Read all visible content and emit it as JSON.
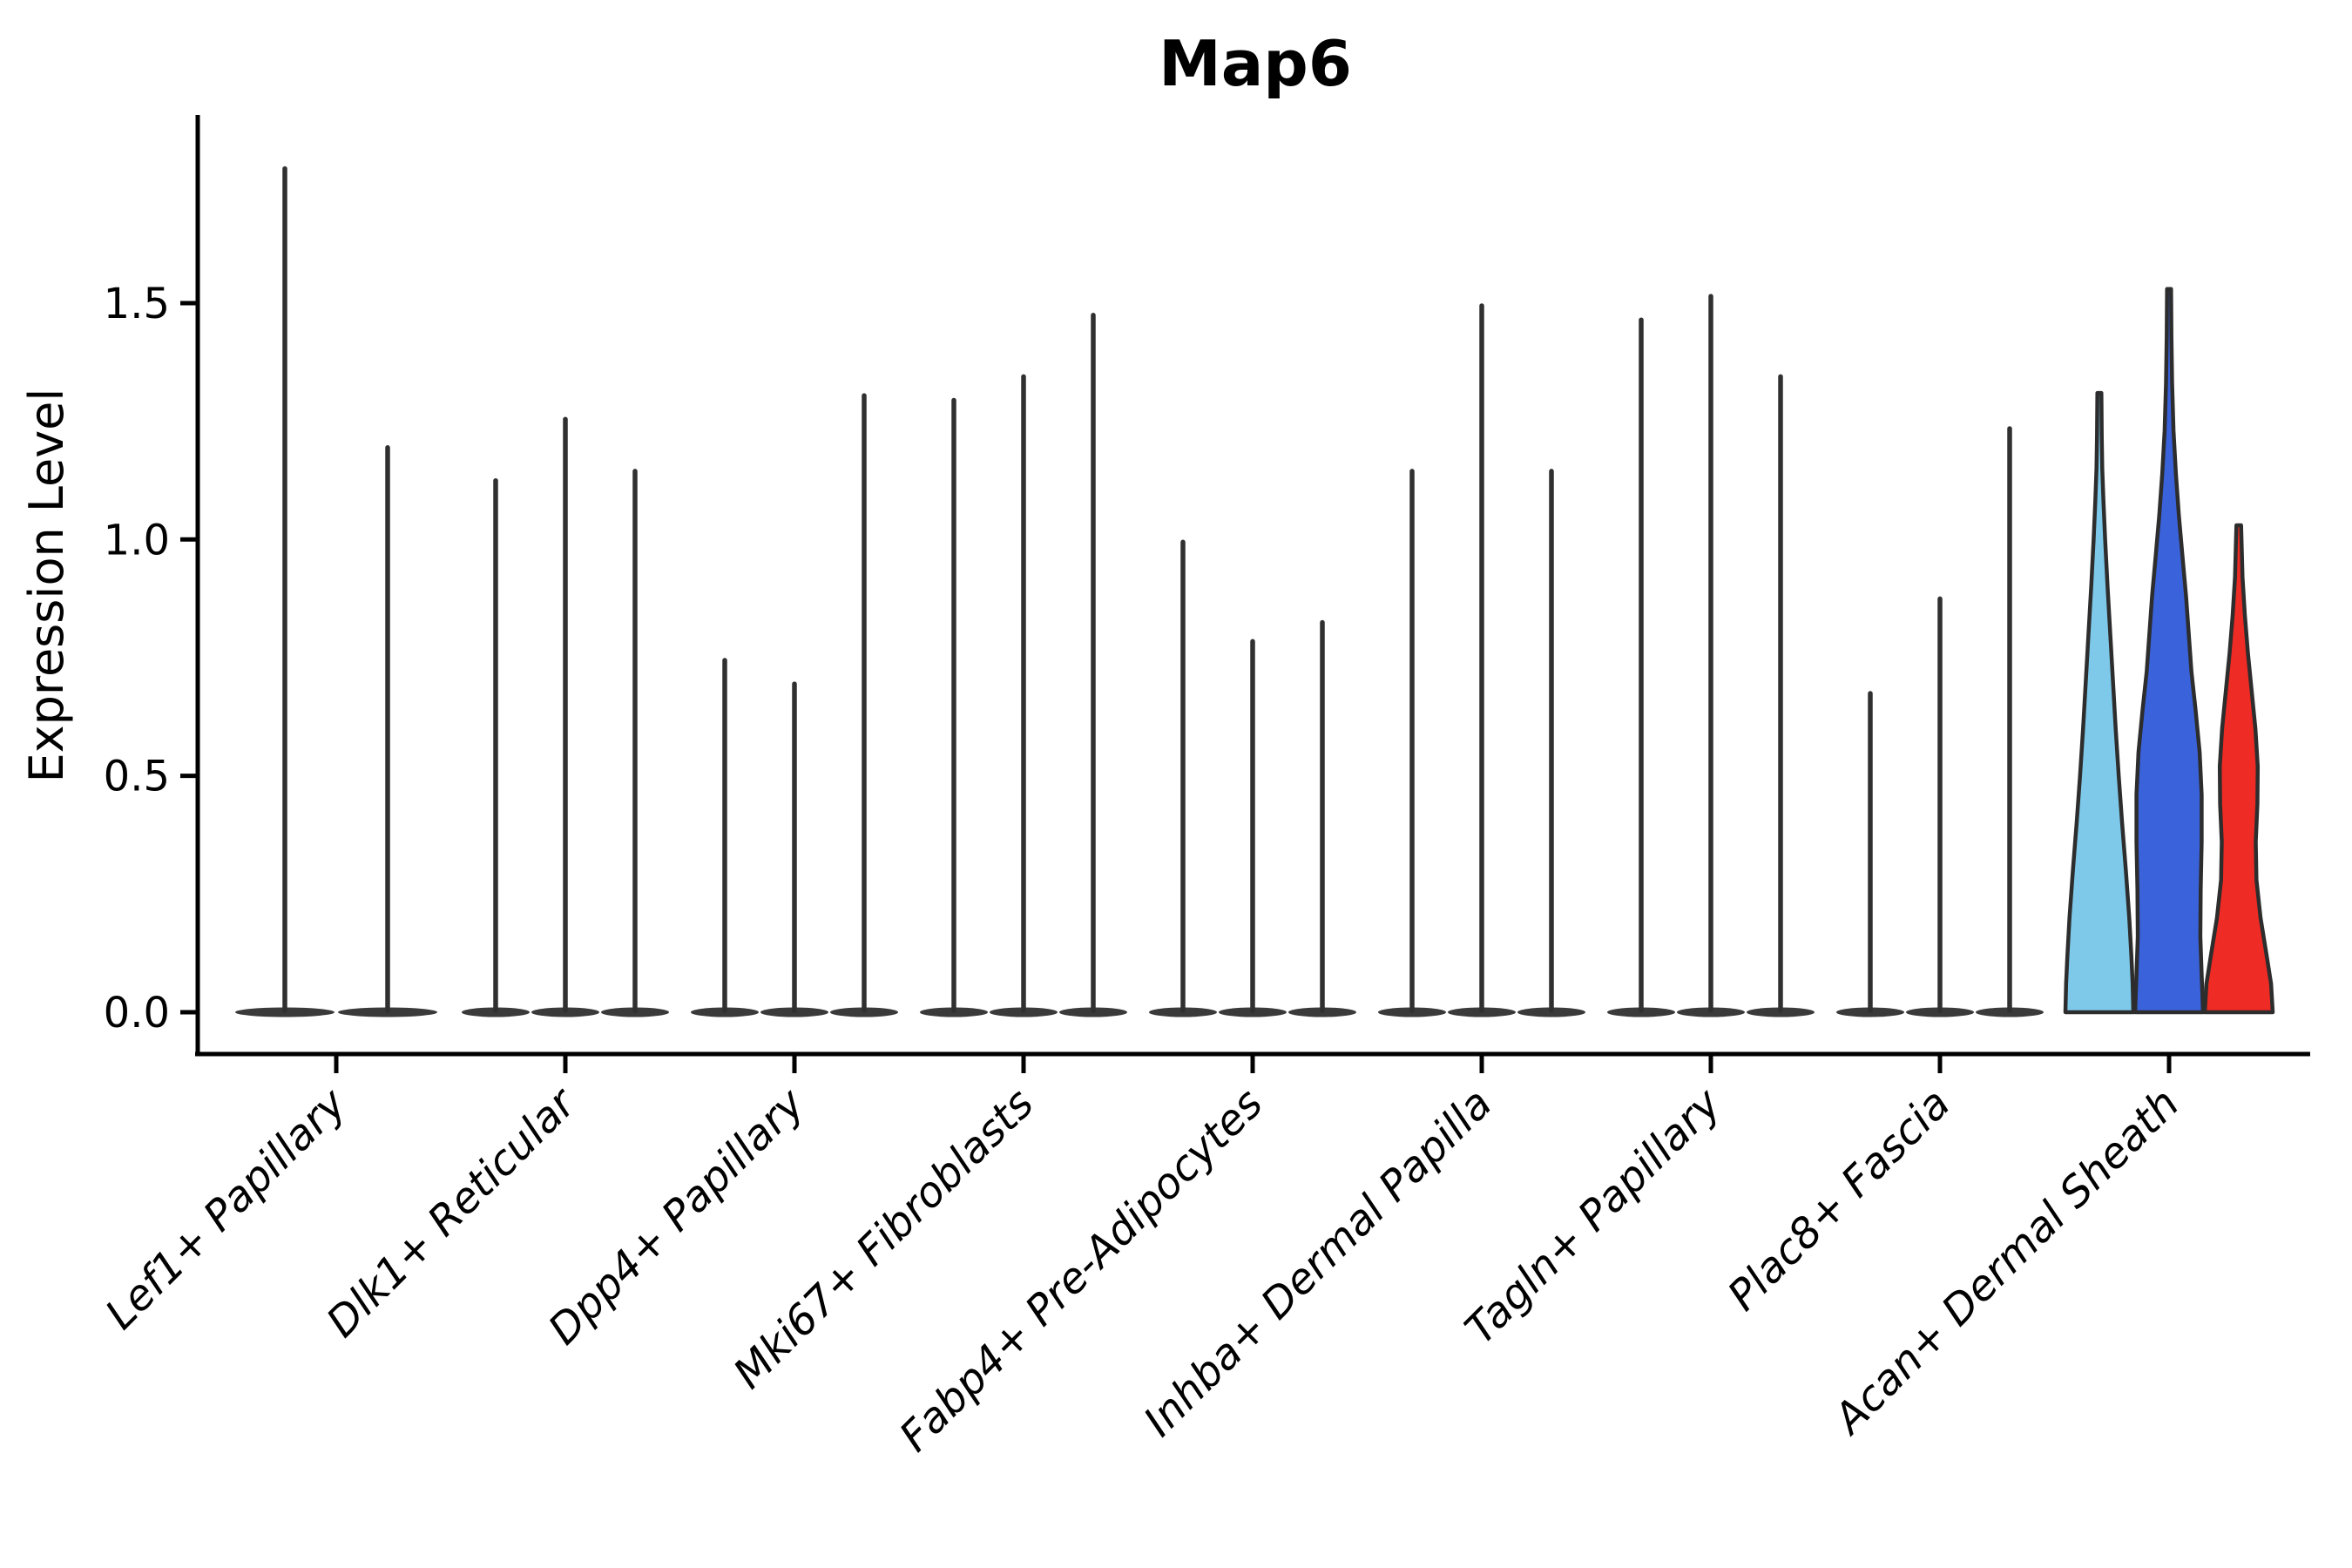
{
  "title": "Map6",
  "axes": {
    "ylabel": "Expression Level",
    "ytick_labels": [
      "0.0",
      "0.5",
      "1.0",
      "1.5"
    ]
  },
  "chart_data": {
    "type": "violin",
    "title": "Map6",
    "xlabel": "",
    "ylabel": "Expression Level",
    "ylim": [
      0,
      1.89
    ],
    "yticks": [
      0.0,
      0.5,
      1.0,
      1.5
    ],
    "grid": false,
    "legend_position": "none",
    "categories": [
      "Lef1+ Papillary",
      "Dlk1+ Reticular",
      "Dpp4+ Papillary",
      "Mki67+ Fibroblasts",
      "Fabp4+ Pre-Adipocytes",
      "Inhba+ Dermal Papilla",
      "Tagln+ Papillary",
      "Plac8+ Fascia",
      "Acan+ Dermal Sheath"
    ],
    "groups": [
      {
        "category": "Lef1+ Papillary",
        "violins": [
          {
            "max": 1.79,
            "color": "#3a3a3a"
          },
          {
            "max": 1.2,
            "color": "#3a3a3a"
          }
        ]
      },
      {
        "category": "Dlk1+ Reticular",
        "violins": [
          {
            "max": 1.13,
            "color": "#3a3a3a"
          },
          {
            "max": 1.26,
            "color": "#3a3a3a"
          },
          {
            "max": 1.15,
            "color": "#3a3a3a"
          }
        ]
      },
      {
        "category": "Dpp4+ Papillary",
        "violins": [
          {
            "max": 0.75,
            "color": "#3a3a3a"
          },
          {
            "max": 0.7,
            "color": "#3a3a3a"
          },
          {
            "max": 1.31,
            "color": "#3a3a3a"
          }
        ]
      },
      {
        "category": "Mki67+ Fibroblasts",
        "violins": [
          {
            "max": 1.3,
            "color": "#3a3a3a"
          },
          {
            "max": 1.35,
            "color": "#3a3a3a"
          },
          {
            "max": 1.48,
            "color": "#3a3a3a"
          }
        ]
      },
      {
        "category": "Fabp4+ Pre-Adipocytes",
        "violins": [
          {
            "max": 1.0,
            "color": "#3a3a3a"
          },
          {
            "max": 0.79,
            "color": "#3a3a3a"
          },
          {
            "max": 0.83,
            "color": "#3a3a3a"
          }
        ]
      },
      {
        "category": "Inhba+ Dermal Papilla",
        "violins": [
          {
            "max": 1.15,
            "color": "#3a3a3a"
          },
          {
            "max": 1.5,
            "color": "#3a3a3a"
          },
          {
            "max": 1.15,
            "color": "#3a3a3a"
          }
        ]
      },
      {
        "category": "Tagln+ Papillary",
        "violins": [
          {
            "max": 1.47,
            "color": "#3a3a3a"
          },
          {
            "max": 1.52,
            "color": "#3a3a3a"
          },
          {
            "max": 1.35,
            "color": "#3a3a3a"
          }
        ]
      },
      {
        "category": "Plac8+ Fascia",
        "violins": [
          {
            "max": 0.68,
            "color": "#3a3a3a"
          },
          {
            "max": 0.88,
            "color": "#3a3a3a"
          },
          {
            "max": 1.24,
            "color": "#3a3a3a"
          }
        ]
      },
      {
        "category": "Acan+ Dermal Sheath",
        "violins": [
          {
            "max": 1.31,
            "color": "#7EC9E9",
            "profile": [
              [
                0.0,
                1.0
              ],
              [
                0.06,
                0.98
              ],
              [
                0.12,
                0.94
              ],
              [
                0.2,
                0.88
              ],
              [
                0.3,
                0.78
              ],
              [
                0.4,
                0.67
              ],
              [
                0.5,
                0.57
              ],
              [
                0.6,
                0.48
              ],
              [
                0.7,
                0.4
              ],
              [
                0.8,
                0.32
              ],
              [
                0.9,
                0.24
              ],
              [
                1.0,
                0.17
              ],
              [
                1.08,
                0.12
              ],
              [
                1.15,
                0.085
              ],
              [
                1.22,
                0.068
              ],
              [
                1.31,
                0.06
              ]
            ]
          },
          {
            "max": 1.53,
            "color": "#3A62DB",
            "profile": [
              [
                0.0,
                1.0
              ],
              [
                0.08,
                0.96
              ],
              [
                0.16,
                0.92
              ],
              [
                0.26,
                0.93
              ],
              [
                0.36,
                0.96
              ],
              [
                0.46,
                0.96
              ],
              [
                0.55,
                0.9
              ],
              [
                0.64,
                0.78
              ],
              [
                0.72,
                0.66
              ],
              [
                0.8,
                0.58
              ],
              [
                0.88,
                0.5
              ],
              [
                0.96,
                0.4
              ],
              [
                1.05,
                0.29
              ],
              [
                1.14,
                0.2
              ],
              [
                1.23,
                0.13
              ],
              [
                1.33,
                0.09
              ],
              [
                1.43,
                0.07
              ],
              [
                1.53,
                0.06
              ]
            ]
          },
          {
            "max": 1.03,
            "color": "#EE2B24",
            "profile": [
              [
                0.0,
                1.0
              ],
              [
                0.06,
                0.95
              ],
              [
                0.12,
                0.82
              ],
              [
                0.2,
                0.64
              ],
              [
                0.28,
                0.52
              ],
              [
                0.36,
                0.5
              ],
              [
                0.44,
                0.55
              ],
              [
                0.52,
                0.56
              ],
              [
                0.6,
                0.49
              ],
              [
                0.68,
                0.38
              ],
              [
                0.76,
                0.27
              ],
              [
                0.84,
                0.18
              ],
              [
                0.92,
                0.11
              ],
              [
                1.03,
                0.07
              ]
            ]
          }
        ]
      }
    ],
    "colors": {
      "spike": "#303030",
      "violin_dark": "#3a3a3a",
      "outline": "#2d2d2d",
      "accent_lightblue": "#7EC9E9",
      "accent_blue": "#3A62DB",
      "accent_red": "#EE2B24"
    }
  }
}
